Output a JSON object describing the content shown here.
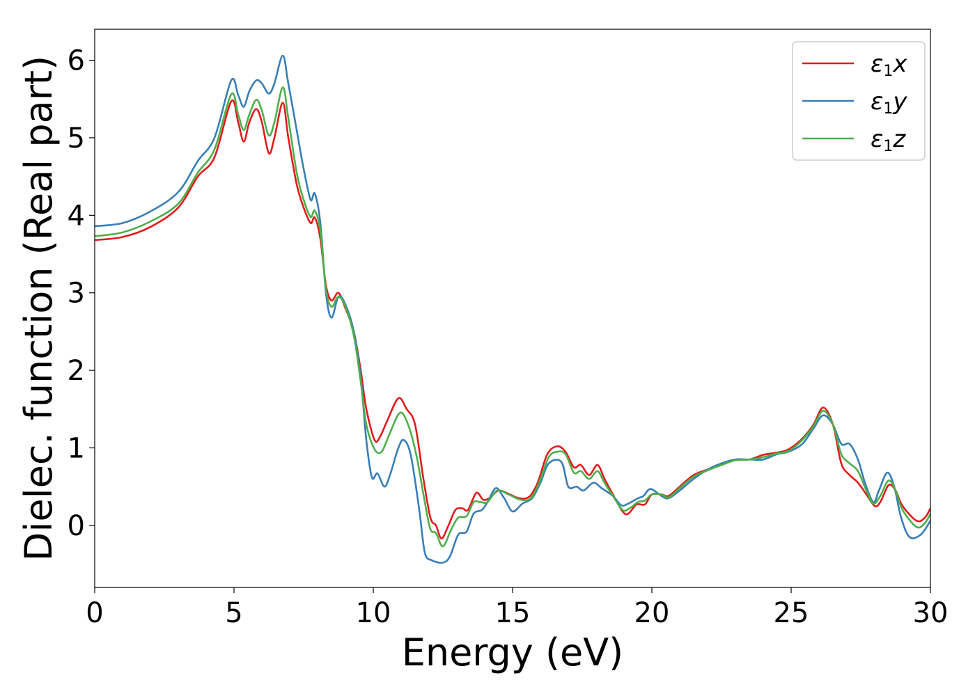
{
  "chart_data": {
    "type": "line",
    "xlabel": "Energy (eV)",
    "ylabel": "Dielec. function (Real part)",
    "xlim": [
      0,
      30
    ],
    "ylim": [
      -0.8,
      6.4
    ],
    "xticks": [
      0,
      5,
      10,
      15,
      20,
      25,
      30
    ],
    "yticks": [
      0,
      1,
      2,
      3,
      4,
      5,
      6
    ],
    "grid": false,
    "legend_position": "top-right",
    "series": [
      {
        "name": "x",
        "legend_symbol": "ε",
        "legend_sub": "1",
        "color": "#e41a1c",
        "points": [
          [
            0,
            3.68
          ],
          [
            1,
            3.72
          ],
          [
            2,
            3.85
          ],
          [
            3,
            4.1
          ],
          [
            3.7,
            4.5
          ],
          [
            4.3,
            4.75
          ],
          [
            4.9,
            5.47
          ],
          [
            5.15,
            5.2
          ],
          [
            5.35,
            4.95
          ],
          [
            5.55,
            5.2
          ],
          [
            5.8,
            5.37
          ],
          [
            6.0,
            5.2
          ],
          [
            6.25,
            4.8
          ],
          [
            6.45,
            5.0
          ],
          [
            6.75,
            5.45
          ],
          [
            6.95,
            5.0
          ],
          [
            7.25,
            4.4
          ],
          [
            7.5,
            4.1
          ],
          [
            7.75,
            3.9
          ],
          [
            7.9,
            3.97
          ],
          [
            8.1,
            3.7
          ],
          [
            8.3,
            3.1
          ],
          [
            8.5,
            2.9
          ],
          [
            8.75,
            3.0
          ],
          [
            9.0,
            2.8
          ],
          [
            9.3,
            2.5
          ],
          [
            9.55,
            2.0
          ],
          [
            9.75,
            1.5
          ],
          [
            10.05,
            1.1
          ],
          [
            10.25,
            1.15
          ],
          [
            10.5,
            1.35
          ],
          [
            10.9,
            1.64
          ],
          [
            11.2,
            1.5
          ],
          [
            11.5,
            1.3
          ],
          [
            11.8,
            0.6
          ],
          [
            12.05,
            0.1
          ],
          [
            12.25,
            0.0
          ],
          [
            12.45,
            -0.17
          ],
          [
            12.7,
            0.0
          ],
          [
            12.95,
            0.2
          ],
          [
            13.2,
            0.22
          ],
          [
            13.4,
            0.2
          ],
          [
            13.7,
            0.42
          ],
          [
            13.95,
            0.33
          ],
          [
            14.2,
            0.36
          ],
          [
            14.5,
            0.45
          ],
          [
            14.9,
            0.4
          ],
          [
            15.25,
            0.35
          ],
          [
            15.6,
            0.37
          ],
          [
            15.9,
            0.55
          ],
          [
            16.25,
            0.92
          ],
          [
            16.6,
            1.02
          ],
          [
            16.9,
            0.95
          ],
          [
            17.2,
            0.75
          ],
          [
            17.45,
            0.78
          ],
          [
            17.75,
            0.65
          ],
          [
            18.05,
            0.78
          ],
          [
            18.3,
            0.6
          ],
          [
            18.6,
            0.4
          ],
          [
            18.95,
            0.18
          ],
          [
            19.15,
            0.15
          ],
          [
            19.45,
            0.27
          ],
          [
            19.75,
            0.27
          ],
          [
            20.0,
            0.4
          ],
          [
            20.35,
            0.4
          ],
          [
            20.6,
            0.38
          ],
          [
            21.0,
            0.5
          ],
          [
            21.5,
            0.65
          ],
          [
            22.0,
            0.72
          ],
          [
            22.5,
            0.78
          ],
          [
            23.0,
            0.85
          ],
          [
            23.5,
            0.85
          ],
          [
            24.0,
            0.91
          ],
          [
            24.5,
            0.94
          ],
          [
            24.9,
            0.98
          ],
          [
            25.4,
            1.12
          ],
          [
            25.8,
            1.3
          ],
          [
            26.15,
            1.52
          ],
          [
            26.5,
            1.3
          ],
          [
            26.8,
            0.8
          ],
          [
            27.1,
            0.65
          ],
          [
            27.4,
            0.55
          ],
          [
            27.7,
            0.4
          ],
          [
            28.0,
            0.25
          ],
          [
            28.2,
            0.3
          ],
          [
            28.5,
            0.52
          ],
          [
            28.75,
            0.45
          ],
          [
            29.0,
            0.25
          ],
          [
            29.5,
            0.06
          ],
          [
            29.8,
            0.1
          ],
          [
            30.0,
            0.22
          ]
        ]
      },
      {
        "name": "y",
        "legend_symbol": "ε",
        "legend_sub": "1",
        "color": "#377eb8",
        "points": [
          [
            0,
            3.86
          ],
          [
            1,
            3.9
          ],
          [
            2,
            4.05
          ],
          [
            3,
            4.3
          ],
          [
            3.7,
            4.7
          ],
          [
            4.3,
            5.0
          ],
          [
            4.9,
            5.74
          ],
          [
            5.15,
            5.55
          ],
          [
            5.35,
            5.4
          ],
          [
            5.55,
            5.6
          ],
          [
            5.8,
            5.74
          ],
          [
            6.0,
            5.7
          ],
          [
            6.25,
            5.57
          ],
          [
            6.45,
            5.7
          ],
          [
            6.75,
            6.06
          ],
          [
            6.95,
            5.7
          ],
          [
            7.25,
            5.1
          ],
          [
            7.5,
            4.6
          ],
          [
            7.75,
            4.2
          ],
          [
            7.9,
            4.28
          ],
          [
            8.1,
            3.9
          ],
          [
            8.3,
            3.0
          ],
          [
            8.5,
            2.68
          ],
          [
            8.75,
            2.95
          ],
          [
            9.0,
            2.85
          ],
          [
            9.3,
            2.5
          ],
          [
            9.55,
            1.9
          ],
          [
            9.75,
            1.1
          ],
          [
            9.95,
            0.62
          ],
          [
            10.15,
            0.67
          ],
          [
            10.4,
            0.5
          ],
          [
            10.6,
            0.65
          ],
          [
            10.9,
            1.0
          ],
          [
            11.1,
            1.1
          ],
          [
            11.35,
            0.9
          ],
          [
            11.65,
            0.2
          ],
          [
            11.85,
            -0.35
          ],
          [
            12.1,
            -0.45
          ],
          [
            12.5,
            -0.48
          ],
          [
            12.75,
            -0.4
          ],
          [
            13.05,
            -0.12
          ],
          [
            13.35,
            -0.08
          ],
          [
            13.6,
            0.15
          ],
          [
            13.9,
            0.2
          ],
          [
            14.1,
            0.3
          ],
          [
            14.4,
            0.48
          ],
          [
            14.7,
            0.35
          ],
          [
            15.0,
            0.18
          ],
          [
            15.35,
            0.28
          ],
          [
            15.7,
            0.35
          ],
          [
            16.0,
            0.55
          ],
          [
            16.3,
            0.8
          ],
          [
            16.75,
            0.82
          ],
          [
            17.0,
            0.5
          ],
          [
            17.3,
            0.5
          ],
          [
            17.55,
            0.45
          ],
          [
            17.9,
            0.55
          ],
          [
            18.2,
            0.48
          ],
          [
            18.6,
            0.38
          ],
          [
            18.9,
            0.26
          ],
          [
            19.15,
            0.28
          ],
          [
            19.5,
            0.35
          ],
          [
            19.7,
            0.38
          ],
          [
            19.95,
            0.47
          ],
          [
            20.35,
            0.38
          ],
          [
            20.6,
            0.35
          ],
          [
            21.0,
            0.45
          ],
          [
            21.5,
            0.6
          ],
          [
            22.0,
            0.72
          ],
          [
            22.5,
            0.8
          ],
          [
            23.0,
            0.85
          ],
          [
            23.5,
            0.85
          ],
          [
            24.0,
            0.85
          ],
          [
            24.5,
            0.92
          ],
          [
            24.9,
            0.95
          ],
          [
            25.4,
            1.05
          ],
          [
            25.8,
            1.25
          ],
          [
            26.15,
            1.42
          ],
          [
            26.5,
            1.3
          ],
          [
            26.8,
            1.05
          ],
          [
            27.1,
            1.05
          ],
          [
            27.4,
            0.85
          ],
          [
            27.65,
            0.55
          ],
          [
            27.95,
            0.3
          ],
          [
            28.15,
            0.45
          ],
          [
            28.45,
            0.68
          ],
          [
            28.7,
            0.5
          ],
          [
            28.95,
            0.1
          ],
          [
            29.25,
            -0.15
          ],
          [
            29.65,
            -0.12
          ],
          [
            30.0,
            0.06
          ]
        ]
      },
      {
        "name": "z",
        "legend_symbol": "ε",
        "legend_sub": "1",
        "color": "#4daf4a",
        "points": [
          [
            0,
            3.73
          ],
          [
            1,
            3.78
          ],
          [
            2,
            3.92
          ],
          [
            3,
            4.15
          ],
          [
            3.7,
            4.55
          ],
          [
            4.3,
            4.85
          ],
          [
            4.9,
            5.56
          ],
          [
            5.15,
            5.3
          ],
          [
            5.35,
            5.1
          ],
          [
            5.55,
            5.3
          ],
          [
            5.8,
            5.49
          ],
          [
            6.0,
            5.35
          ],
          [
            6.25,
            5.03
          ],
          [
            6.45,
            5.2
          ],
          [
            6.75,
            5.65
          ],
          [
            6.95,
            5.25
          ],
          [
            7.25,
            4.55
          ],
          [
            7.5,
            4.2
          ],
          [
            7.75,
            3.98
          ],
          [
            7.9,
            4.06
          ],
          [
            8.1,
            3.8
          ],
          [
            8.3,
            3.05
          ],
          [
            8.5,
            2.82
          ],
          [
            8.75,
            2.95
          ],
          [
            9.0,
            2.82
          ],
          [
            9.3,
            2.45
          ],
          [
            9.55,
            1.85
          ],
          [
            9.75,
            1.3
          ],
          [
            10.05,
            0.98
          ],
          [
            10.3,
            0.95
          ],
          [
            10.55,
            1.15
          ],
          [
            10.95,
            1.45
          ],
          [
            11.25,
            1.3
          ],
          [
            11.55,
            0.9
          ],
          [
            11.85,
            0.3
          ],
          [
            12.05,
            -0.05
          ],
          [
            12.25,
            -0.1
          ],
          [
            12.5,
            -0.27
          ],
          [
            12.8,
            -0.05
          ],
          [
            13.05,
            0.1
          ],
          [
            13.35,
            0.12
          ],
          [
            13.6,
            0.3
          ],
          [
            13.85,
            0.3
          ],
          [
            14.1,
            0.3
          ],
          [
            14.45,
            0.45
          ],
          [
            14.85,
            0.4
          ],
          [
            15.3,
            0.33
          ],
          [
            15.65,
            0.35
          ],
          [
            15.95,
            0.55
          ],
          [
            16.3,
            0.88
          ],
          [
            16.6,
            0.95
          ],
          [
            16.9,
            0.92
          ],
          [
            17.2,
            0.68
          ],
          [
            17.45,
            0.7
          ],
          [
            17.75,
            0.6
          ],
          [
            18.05,
            0.7
          ],
          [
            18.3,
            0.55
          ],
          [
            18.6,
            0.38
          ],
          [
            18.95,
            0.2
          ],
          [
            19.2,
            0.22
          ],
          [
            19.5,
            0.3
          ],
          [
            19.75,
            0.32
          ],
          [
            20.0,
            0.4
          ],
          [
            20.35,
            0.4
          ],
          [
            20.6,
            0.36
          ],
          [
            21.0,
            0.48
          ],
          [
            21.5,
            0.63
          ],
          [
            22.0,
            0.71
          ],
          [
            22.5,
            0.78
          ],
          [
            23.0,
            0.84
          ],
          [
            23.5,
            0.85
          ],
          [
            24.0,
            0.88
          ],
          [
            24.5,
            0.93
          ],
          [
            24.9,
            0.96
          ],
          [
            25.4,
            1.1
          ],
          [
            25.8,
            1.28
          ],
          [
            26.15,
            1.48
          ],
          [
            26.5,
            1.3
          ],
          [
            26.8,
            0.92
          ],
          [
            27.1,
            0.8
          ],
          [
            27.4,
            0.7
          ],
          [
            27.7,
            0.45
          ],
          [
            27.95,
            0.28
          ],
          [
            28.2,
            0.38
          ],
          [
            28.5,
            0.58
          ],
          [
            28.75,
            0.45
          ],
          [
            29.0,
            0.2
          ],
          [
            29.5,
            -0.02
          ],
          [
            29.8,
            0.03
          ],
          [
            30.0,
            0.15
          ]
        ]
      }
    ]
  }
}
